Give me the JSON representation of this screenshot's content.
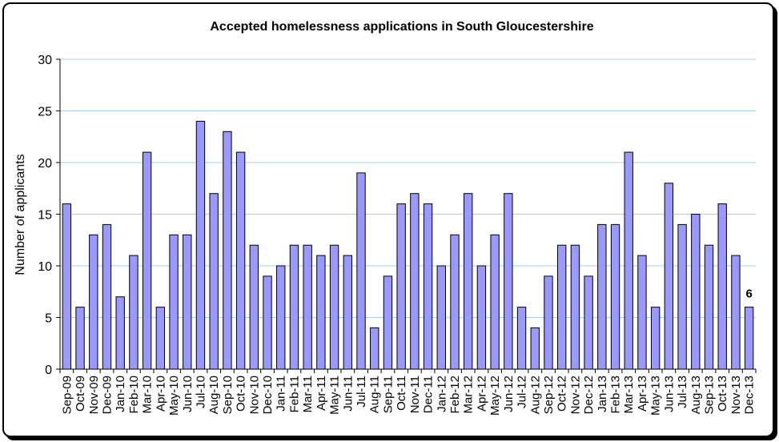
{
  "chart_data": {
    "type": "bar",
    "title": "Accepted homelessness applications in South Gloucestershire",
    "xlabel": "",
    "ylabel": "Number of applicants",
    "ylim": [
      0,
      30
    ],
    "yticks": [
      0,
      5,
      10,
      15,
      20,
      25,
      30
    ],
    "grid": true,
    "bar_color": "#9999ff",
    "categories": [
      "Sep-09",
      "Oct-09",
      "Nov-09",
      "Dec-09",
      "Jan-10",
      "Feb-10",
      "Mar-10",
      "Apr-10",
      "May-10",
      "Jun-10",
      "Jul-10",
      "Aug-10",
      "Sep-10",
      "Oct-10",
      "Nov-10",
      "Dec-10",
      "Jan-11",
      "Feb-11",
      "Mar-11",
      "Apr-11",
      "May-11",
      "Jun-11",
      "Jul-11",
      "Aug-11",
      "Sep-11",
      "Oct-11",
      "Nov-11",
      "Dec-11",
      "Jan-12",
      "Feb-12",
      "Mar-12",
      "Apr-12",
      "May-12",
      "Jun-12",
      "Jul-12",
      "Aug-12",
      "Sep-12",
      "Oct-12",
      "Nov-12",
      "Dec-12",
      "Jan-13",
      "Feb-13",
      "Mar-13",
      "Apr-13",
      "May-13",
      "Jun-13",
      "Jul-13",
      "Aug-13",
      "Sep-13",
      "Oct-13",
      "Nov-13",
      "Dec-13"
    ],
    "values": [
      16,
      6,
      13,
      14,
      7,
      11,
      21,
      6,
      13,
      13,
      24,
      17,
      23,
      21,
      12,
      9,
      10,
      12,
      12,
      11,
      12,
      11,
      19,
      4,
      9,
      16,
      17,
      16,
      10,
      13,
      17,
      10,
      13,
      17,
      6,
      4,
      9,
      12,
      12,
      9,
      14,
      14,
      21,
      11,
      6,
      18,
      14,
      15,
      12,
      16,
      11,
      6
    ],
    "data_labels": [
      {
        "index": 51,
        "text": "6"
      }
    ]
  }
}
